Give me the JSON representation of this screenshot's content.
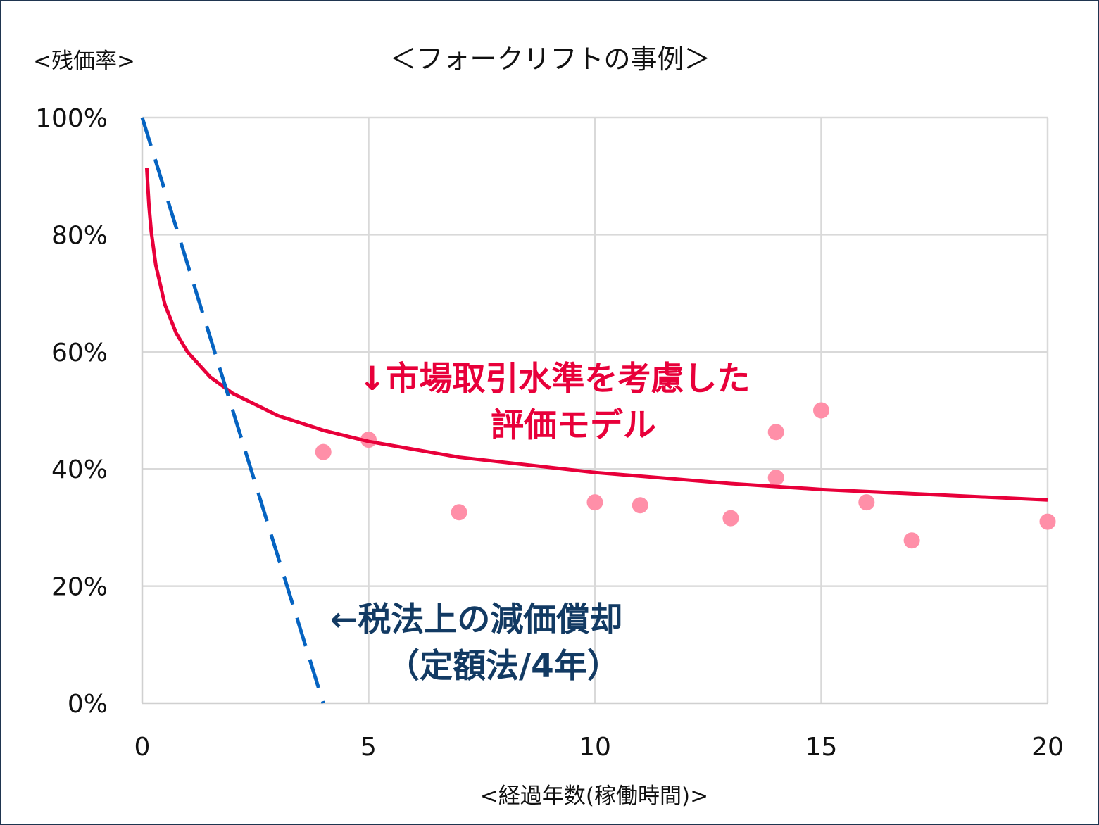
{
  "chart_data": {
    "type": "scatter",
    "title": "＜フォークリフトの事例＞",
    "ylabel": "<残価率>",
    "xlabel": "<経過年数(稼働時間)>",
    "xlim": [
      0,
      20
    ],
    "ylim": [
      0,
      100
    ],
    "x_ticks": [
      "0",
      "5",
      "10",
      "15",
      "20"
    ],
    "y_ticks": [
      "0%",
      "20%",
      "40%",
      "60%",
      "80%",
      "100%"
    ],
    "grid": true,
    "colors": {
      "points": "#ff8fa8",
      "model_line": "#e8003a",
      "tax_line": "#0563c1",
      "tax_annotation": "#123a63",
      "model_annotation": "#e8003a",
      "grid": "#d9d9d9"
    },
    "points": {
      "x": [
        4,
        5,
        7,
        10,
        11,
        13,
        14,
        14,
        15,
        16,
        17,
        20
      ],
      "y": [
        42.9,
        45.0,
        32.6,
        34.3,
        33.8,
        31.6,
        46.3,
        38.5,
        50.0,
        34.3,
        27.8,
        31.0
      ]
    },
    "model_curve": {
      "x": [
        0.1,
        0.15,
        0.2,
        0.3,
        0.5,
        0.75,
        1,
        1.5,
        2,
        3,
        4,
        5,
        7,
        10,
        13,
        15,
        20
      ],
      "y": [
        91.4,
        84.9,
        80.5,
        74.8,
        68.1,
        63.2,
        60.0,
        55.7,
        52.9,
        49.1,
        46.6,
        44.7,
        42.0,
        39.4,
        37.5,
        36.5,
        34.7
      ]
    },
    "tax_line": {
      "x": [
        0,
        4
      ],
      "y": [
        100,
        0
      ],
      "style": "dashed"
    },
    "annotations": {
      "model_line1": "↓市場取引水準を考慮した",
      "model_line2": "評価モデル",
      "tax_line1": "←税法上の減価償却",
      "tax_line2": "（定額法/4年）"
    }
  }
}
